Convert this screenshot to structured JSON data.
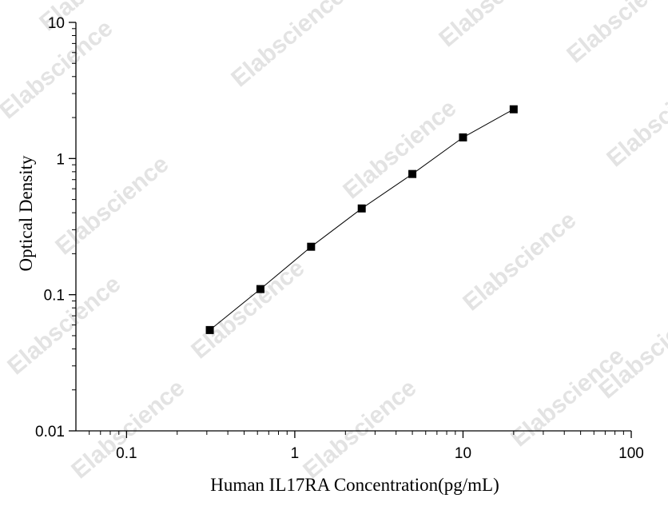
{
  "chart_data": {
    "type": "scatter",
    "xlabel": "Human IL17RA Concentration(pg/mL)",
    "ylabel": "Optical Density",
    "x_scale": "log",
    "y_scale": "log",
    "xlim": [
      0.05,
      100
    ],
    "ylim": [
      0.01,
      10
    ],
    "x_ticks": [
      {
        "value": 0.1,
        "label": "0.1"
      },
      {
        "value": 1,
        "label": "1"
      },
      {
        "value": 10,
        "label": "10"
      },
      {
        "value": 100,
        "label": "100"
      }
    ],
    "y_ticks": [
      {
        "value": 0.01,
        "label": "0.01"
      },
      {
        "value": 0.1,
        "label": "0.1"
      },
      {
        "value": 1,
        "label": "1"
      },
      {
        "value": 10,
        "label": "10"
      }
    ],
    "grid": false,
    "series": [
      {
        "x": [
          0.3125,
          0.625,
          1.25,
          2.5,
          5,
          10,
          20
        ],
        "y": [
          0.055,
          0.11,
          0.225,
          0.43,
          0.77,
          1.43,
          2.3
        ],
        "marker": "square",
        "color": "#000000",
        "fit_line": true
      }
    ]
  },
  "watermark": {
    "text": "Elabscience",
    "color": "#e3e3e3"
  }
}
